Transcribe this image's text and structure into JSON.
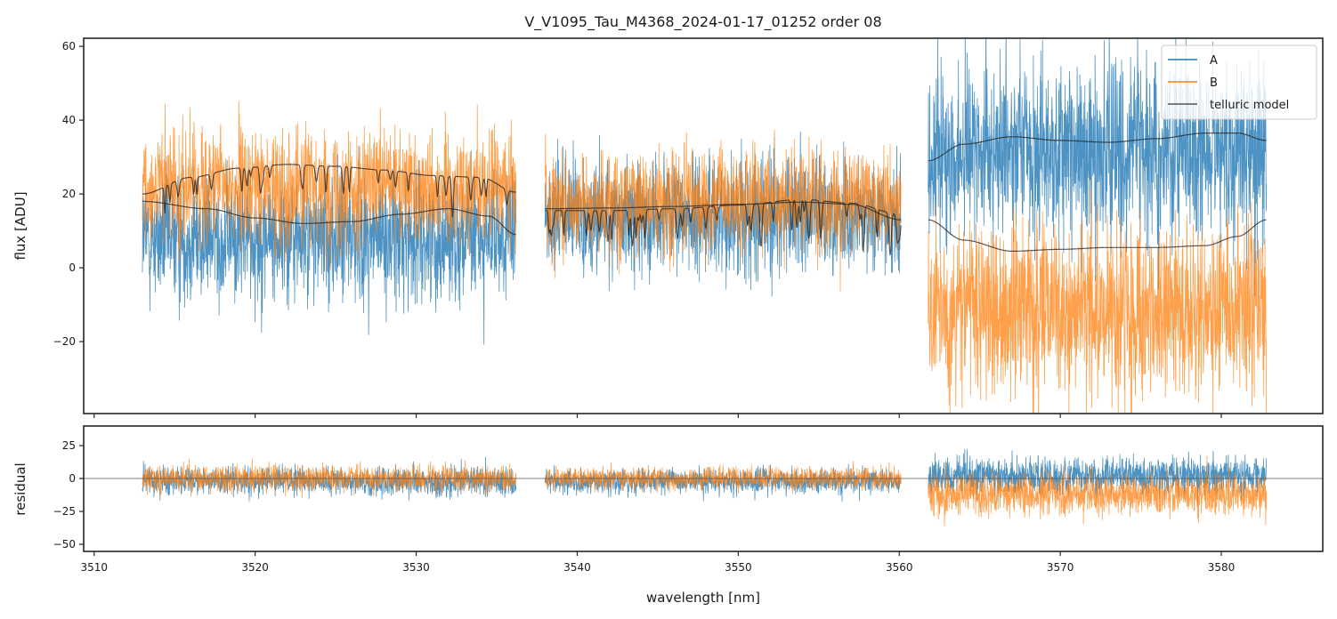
{
  "chart_data": [
    {
      "panel": "flux",
      "type": "line",
      "title": "V_V1095_Tau_M4368_2024-01-17_01252  order 08",
      "xlabel": "",
      "ylabel": "flux [ADU]",
      "xlim": [
        3509.35,
        3586.3
      ],
      "ylim": [
        -39.5,
        62.2
      ],
      "xticks": [
        3510,
        3520,
        3530,
        3540,
        3550,
        3560,
        3570,
        3580
      ],
      "xtick_labels": [
        "",
        "",
        "",
        "",
        "",
        "",
        "",
        ""
      ],
      "yticks": [
        -20,
        0,
        20,
        40,
        60
      ],
      "ytick_labels": [
        "−20",
        "0",
        "20",
        "40",
        "60"
      ],
      "grid": false,
      "legend_position": "top-right",
      "segments": [
        {
          "x_start": 3513.0,
          "x_end": 3536.2,
          "A_model": [
            [
              3513.0,
              18.0
            ],
            [
              3517.0,
              16.0
            ],
            [
              3520.0,
              13.5
            ],
            [
              3523.0,
              12.0
            ],
            [
              3526.0,
              12.5
            ],
            [
              3529.0,
              14.5
            ],
            [
              3532.0,
              16.0
            ],
            [
              3534.5,
              14.0
            ],
            [
              3536.2,
              9.0
            ]
          ],
          "B_model": [
            [
              3513.0,
              20.0
            ],
            [
              3516.0,
              24.5
            ],
            [
              3519.0,
              27.0
            ],
            [
              3522.0,
              28.0
            ],
            [
              3525.0,
              27.5
            ],
            [
              3528.0,
              26.5
            ],
            [
              3531.0,
              25.0
            ],
            [
              3534.0,
              24.5
            ],
            [
              3536.2,
              20.5
            ]
          ],
          "A_noise": {
            "center": 8,
            "spread": 22
          },
          "B_noise": {
            "center": 22,
            "spread": 20
          }
        },
        {
          "x_start": 3538.0,
          "x_end": 3560.1,
          "A_model": [
            [
              3538.0,
              16.0
            ],
            [
              3542.0,
              16.2
            ],
            [
              3546.0,
              16.6
            ],
            [
              3550.0,
              17.2
            ],
            [
              3554.0,
              17.8
            ],
            [
              3557.0,
              17.2
            ],
            [
              3560.1,
              13.0
            ]
          ],
          "B_model": [
            [
              3538.0,
              15.5
            ],
            [
              3542.0,
              15.5
            ],
            [
              3546.0,
              16.0
            ],
            [
              3550.0,
              17.0
            ],
            [
              3554.0,
              18.5
            ],
            [
              3557.0,
              17.5
            ],
            [
              3560.1,
              14.5
            ]
          ],
          "A_noise": {
            "center": 14,
            "spread": 20
          },
          "B_noise": {
            "center": 18,
            "spread": 18
          }
        },
        {
          "x_start": 3561.8,
          "x_end": 3582.8,
          "A_model": [
            [
              3561.8,
              29.0
            ],
            [
              3564.0,
              33.5
            ],
            [
              3567.0,
              35.5
            ],
            [
              3570.0,
              34.5
            ],
            [
              3573.0,
              34.0
            ],
            [
              3576.0,
              35.0
            ],
            [
              3579.0,
              36.5
            ],
            [
              3581.0,
              36.5
            ],
            [
              3582.8,
              34.5
            ]
          ],
          "B_model": [
            [
              3561.8,
              13.0
            ],
            [
              3564.0,
              7.5
            ],
            [
              3567.0,
              4.5
            ],
            [
              3570.0,
              5.0
            ],
            [
              3573.0,
              5.5
            ],
            [
              3576.0,
              5.5
            ],
            [
              3579.0,
              6.0
            ],
            [
              3581.0,
              8.5
            ],
            [
              3582.8,
              13.0
            ]
          ],
          "A_noise": {
            "center": 32,
            "spread": 30
          },
          "B_noise": {
            "center": -12,
            "spread": 30
          }
        }
      ],
      "series": [
        {
          "name": "A",
          "color": "#1f77b4"
        },
        {
          "name": "B",
          "color": "#ff7f0e"
        },
        {
          "name": "telluric model",
          "color": "#333333"
        }
      ]
    },
    {
      "panel": "residual",
      "type": "line",
      "xlabel": "wavelength [nm]",
      "ylabel": "residual",
      "xlim": [
        3509.35,
        3586.3
      ],
      "ylim": [
        -55.4,
        39.9
      ],
      "xticks": [
        3510,
        3520,
        3530,
        3540,
        3550,
        3560,
        3570,
        3580
      ],
      "xtick_labels": [
        "3510",
        "3520",
        "3530",
        "3540",
        "3550",
        "3560",
        "3570",
        "3580"
      ],
      "yticks": [
        -50,
        -25,
        0,
        25
      ],
      "ytick_labels": [
        "−50",
        "−25",
        "0",
        "25"
      ],
      "zero_line": 0,
      "grid": false,
      "segments": [
        {
          "x_start": 3513.0,
          "x_end": 3536.2,
          "A_noise": {
            "center": -2,
            "spread": 14
          },
          "B_noise": {
            "center": 0,
            "spread": 13
          }
        },
        {
          "x_start": 3538.0,
          "x_end": 3560.1,
          "A_noise": {
            "center": -2,
            "spread": 12
          },
          "B_noise": {
            "center": 0,
            "spread": 11
          }
        },
        {
          "x_start": 3561.8,
          "x_end": 3582.8,
          "A_noise": {
            "center": 2,
            "spread": 18
          },
          "B_noise": {
            "center": -12,
            "spread": 20
          }
        }
      ],
      "series": [
        {
          "name": "A",
          "color": "#1f77b4"
        },
        {
          "name": "B",
          "color": "#ff7f0e"
        }
      ]
    }
  ],
  "legend": {
    "items": [
      {
        "label": "A",
        "color": "#1f77b4"
      },
      {
        "label": "B",
        "color": "#ff7f0e"
      },
      {
        "label": "telluric model",
        "color": "#333333"
      }
    ]
  }
}
